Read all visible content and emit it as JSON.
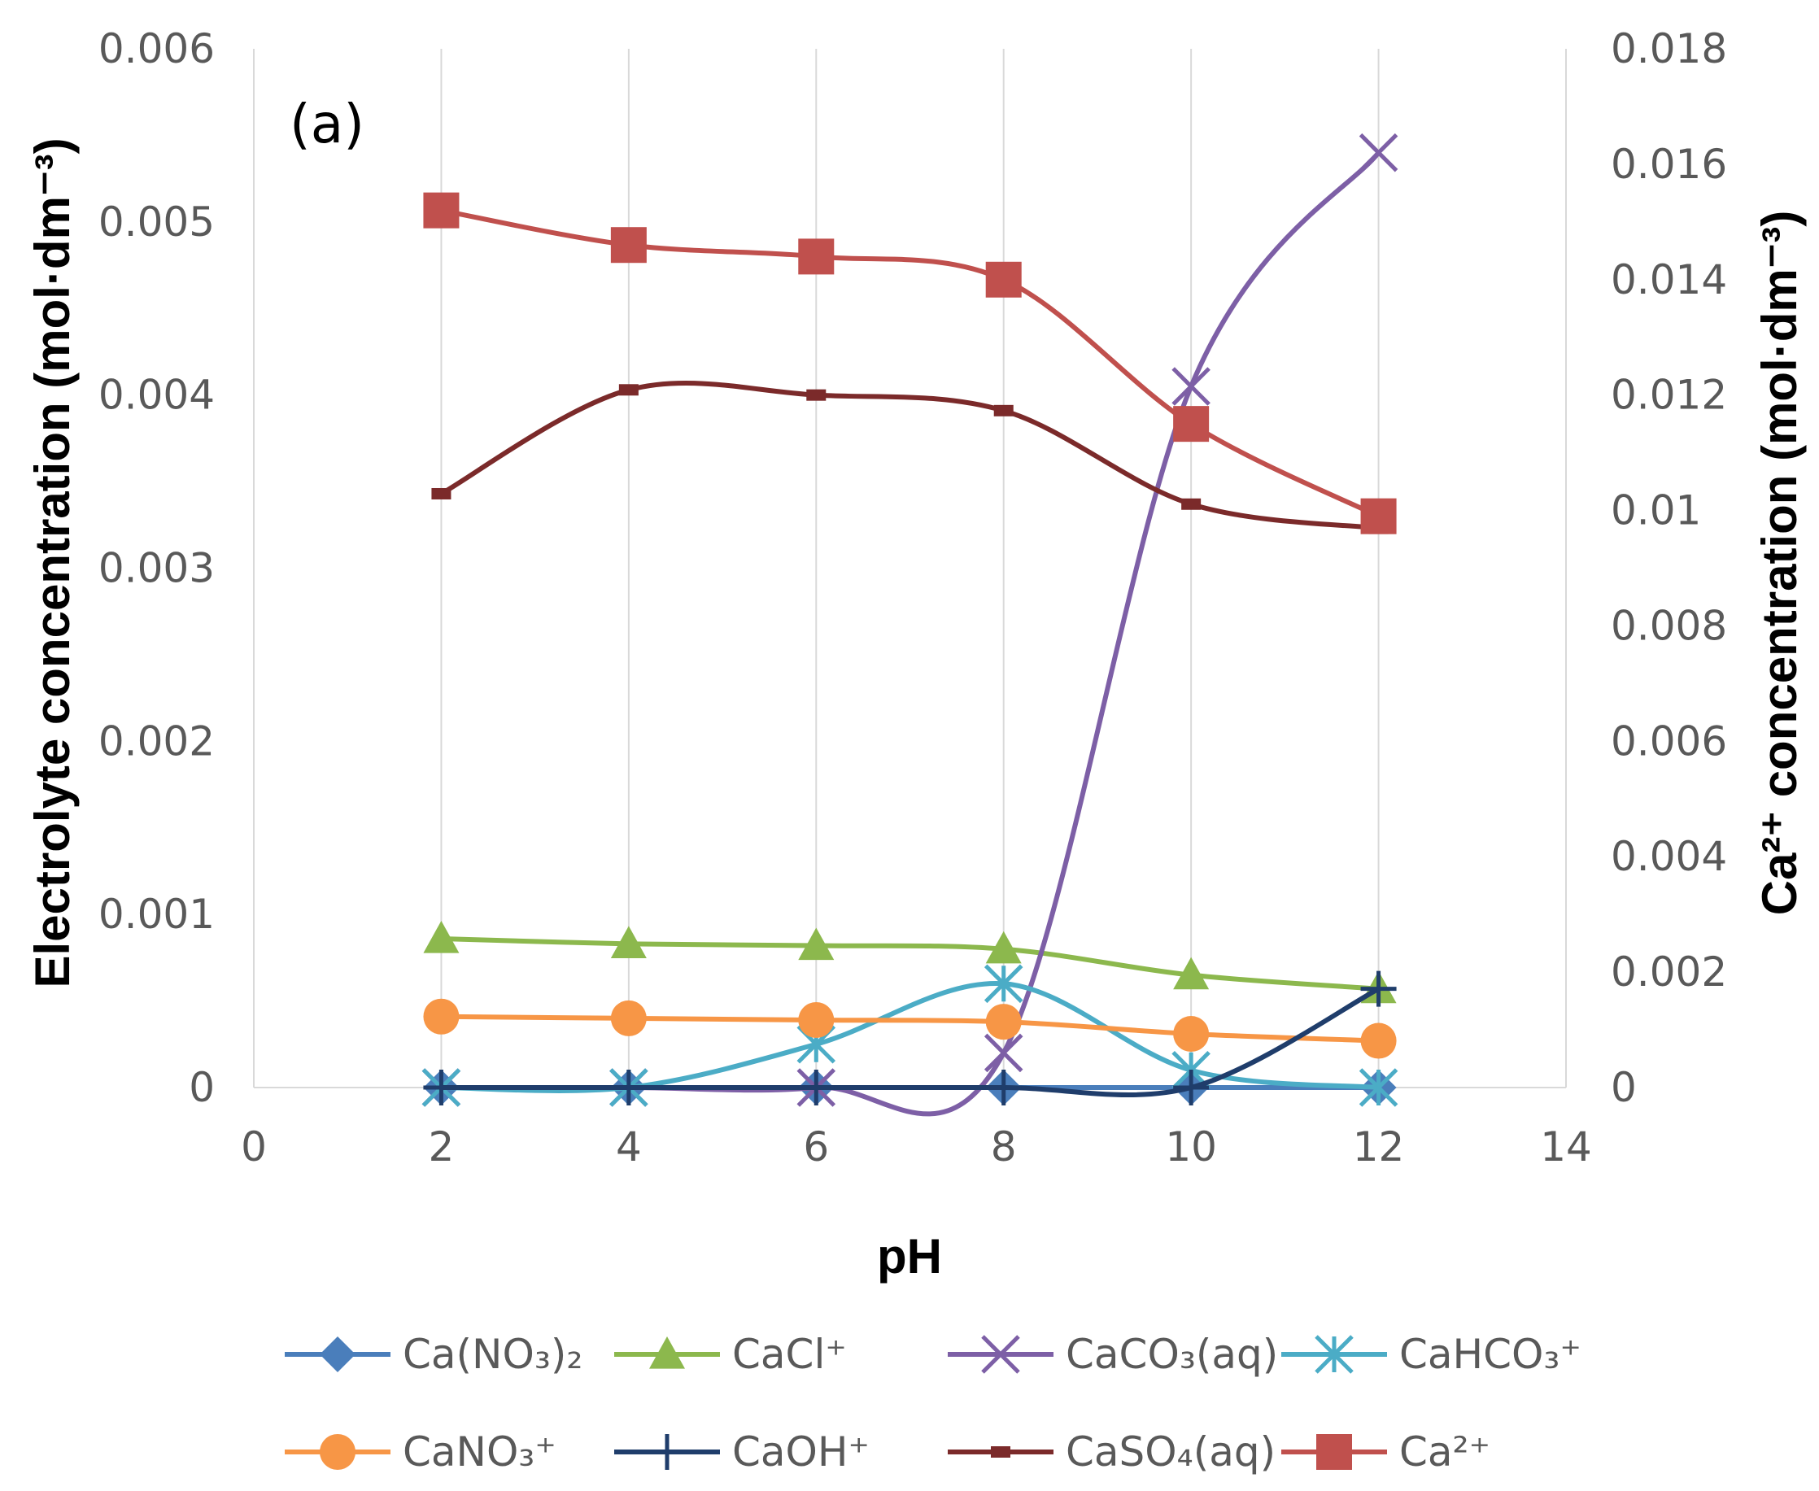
{
  "chart_data": {
    "type": "line",
    "panel_label": "(a)",
    "xlabel": "pH",
    "ylabel_left": "Electrolyte concentration (mol·dm⁻³)",
    "ylabel_right": "Ca²⁺ concentration (mol·dm⁻³)",
    "xlim": [
      0,
      14
    ],
    "ylim_left": [
      0,
      0.006
    ],
    "ylim_right": [
      0,
      0.018
    ],
    "x_ticks": [
      "0",
      "2",
      "4",
      "6",
      "8",
      "10",
      "12",
      "14"
    ],
    "y_left_ticks": [
      "0",
      "0.001",
      "0.002",
      "0.003",
      "0.004",
      "0.005",
      "0.006"
    ],
    "y_right_ticks": [
      "0",
      "0.002",
      "0.004",
      "0.006",
      "0.008",
      "0.01",
      "0.012",
      "0.014",
      "0.016",
      "0.018"
    ],
    "grid": "vertical",
    "legend_position": "bottom",
    "x": [
      2,
      4,
      6,
      8,
      10,
      12
    ],
    "series": [
      {
        "name": "Ca(NO3)2",
        "label": "Ca(NO₃)₂",
        "axis": "left",
        "color": "#4a7ebb",
        "marker": "diamond",
        "values": [
          0,
          0,
          0,
          0,
          0,
          0
        ]
      },
      {
        "name": "CaCl+",
        "label": "CaCl⁺",
        "axis": "left",
        "color": "#8cb84d",
        "marker": "triangle",
        "values": [
          0.00086,
          0.00083,
          0.00082,
          0.0008,
          0.00065,
          0.00057
        ]
      },
      {
        "name": "CaCO3(aq)",
        "label": "CaCO₃(aq)",
        "axis": "left",
        "color": "#7d5fa6",
        "marker": "x",
        "values": [
          0,
          0,
          0,
          0.0002,
          0.00405,
          0.0054
        ]
      },
      {
        "name": "CaHCO3+",
        "label": "CaHCO₃⁺",
        "axis": "left",
        "color": "#4bacc6",
        "marker": "asterisk",
        "values": [
          0,
          0,
          0.00025,
          0.0006,
          0.0001,
          0
        ]
      },
      {
        "name": "CaNO3+",
        "label": "CaNO₃⁺",
        "axis": "left",
        "color": "#f79646",
        "marker": "circle",
        "values": [
          0.00041,
          0.0004,
          0.00039,
          0.00038,
          0.00031,
          0.00027
        ]
      },
      {
        "name": "CaOH+",
        "label": "CaOH⁺",
        "axis": "left",
        "color": "#1f3d6b",
        "marker": "plus",
        "values": [
          0,
          0,
          0,
          0,
          0,
          0.00057
        ]
      },
      {
        "name": "CaSO4(aq)",
        "label": "CaSO₄(aq)",
        "axis": "left",
        "color": "#7b2a2a",
        "marker": "dash",
        "values": [
          0.00343,
          0.00403,
          0.004,
          0.00391,
          0.00337,
          0.00323
        ]
      },
      {
        "name": "Ca2+",
        "label": "Ca²⁺",
        "axis": "right",
        "color": "#c0504d",
        "marker": "square",
        "values": [
          0.0152,
          0.0146,
          0.0144,
          0.014,
          0.0115,
          0.0099
        ]
      }
    ]
  }
}
